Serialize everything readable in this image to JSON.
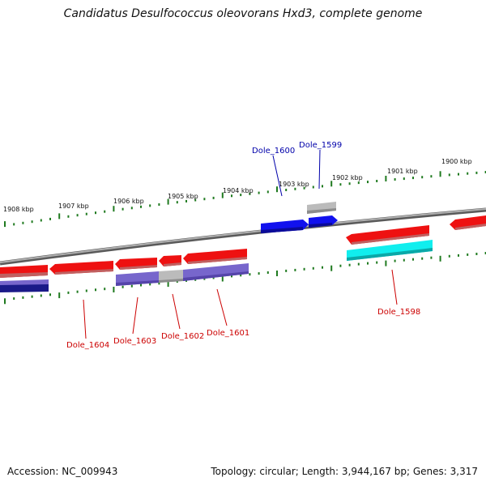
{
  "title": "Candidatus Desulfococcus oleovorans Hxd3, complete genome",
  "footer": {
    "accession": "Accession: NC_009943",
    "stats": "Topology: circular; Length: 3,944,167 bp; Genes: 3,317"
  },
  "colors": {
    "backbone": "#8a8a8a",
    "tick": "#1f7a1f",
    "label_red": "#cc0000",
    "label_blue": "#0000aa",
    "forward_gene": "#ee1111",
    "reverse_gene": "#1111ee",
    "cds_purple": "#7766cc",
    "cds_grey": "#bbbbbb",
    "cds_cyan": "#11eeee",
    "cds_navy": "#1a1a88"
  },
  "scale": {
    "unit": "kbp",
    "labels": [
      "1900 kbp",
      "1901 kbp",
      "1902 kbp",
      "1903 kbp",
      "1904 kbp",
      "1905 kbp",
      "1906 kbp",
      "1907 kbp",
      "1908 kbp"
    ]
  },
  "gene_labels": [
    {
      "text": "Dole_1600",
      "strand": "reverse"
    },
    {
      "text": "Dole_1599",
      "strand": "reverse"
    },
    {
      "text": "Dole_1604",
      "strand": "forward"
    },
    {
      "text": "Dole_1603",
      "strand": "forward"
    },
    {
      "text": "Dole_1602",
      "strand": "forward"
    },
    {
      "text": "Dole_1601",
      "strand": "forward"
    },
    {
      "text": "Dole_1598",
      "strand": "forward"
    }
  ]
}
